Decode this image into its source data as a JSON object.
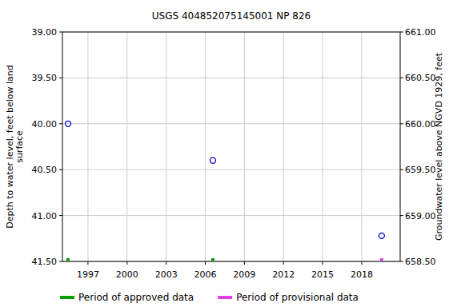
{
  "chart_data": {
    "type": "scatter",
    "title": "USGS 404852075145001 NP   826",
    "ylabel": "Depth to water level, feet below land surface",
    "y2label": "Groundwater level above NGVD 1929, feet",
    "color": "#0000cc",
    "marker": "circle",
    "grid": true,
    "legend": "bottom",
    "xlim": [
      1995.04,
      2020.95
    ],
    "xticks": [
      1997,
      2000,
      2003,
      2006,
      2009,
      2012,
      2015,
      2018
    ],
    "ylim": [
      41.5,
      39.0
    ],
    "yticks": [
      {
        "value": 39.0,
        "label": "39.00"
      },
      {
        "value": 39.5,
        "label": "39.50"
      },
      {
        "value": 40.0,
        "label": "40.00"
      },
      {
        "value": 40.5,
        "label": "40.50"
      },
      {
        "value": 41.0,
        "label": "41.00"
      },
      {
        "value": 41.5,
        "label": "41.50"
      }
    ],
    "y2lim": [
      658.5,
      661.0
    ],
    "y2ticks": [
      {
        "value": 661.0,
        "label": "661.00"
      },
      {
        "value": 660.5,
        "label": "660.50"
      },
      {
        "value": 660.0,
        "label": "660.00"
      },
      {
        "value": 659.5,
        "label": "659.50"
      },
      {
        "value": 659.0,
        "label": "659.00"
      },
      {
        "value": 658.5,
        "label": "658.50"
      }
    ],
    "series": [
      {
        "name": "Period of approved data",
        "color": "#00a000",
        "x": [
          1995.47,
          2006.58
        ],
        "values": [
          40.0,
          40.4
        ]
      },
      {
        "name": "Period of provisional data",
        "color": "#e040e0",
        "x": [
          2019.53
        ],
        "values": [
          41.22
        ]
      }
    ]
  }
}
